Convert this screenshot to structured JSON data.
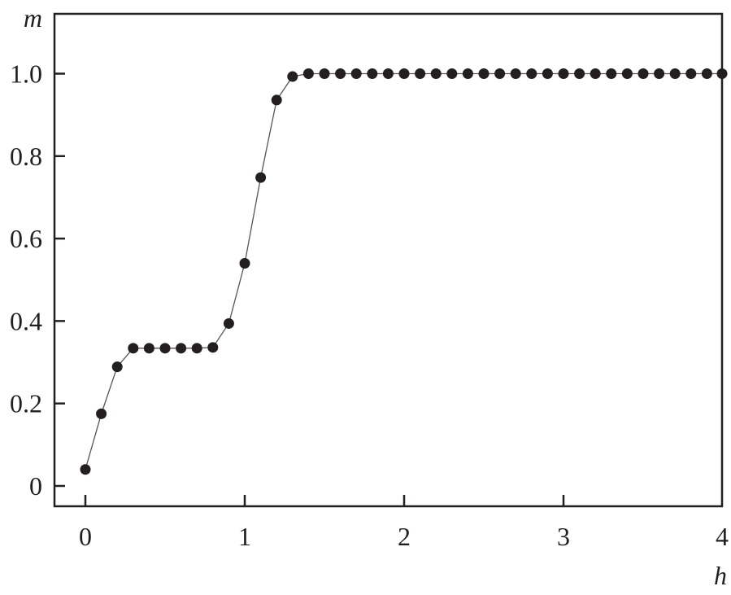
{
  "chart_data": {
    "type": "line",
    "title": "",
    "xlabel": "h",
    "ylabel": "m",
    "xlim": [
      -0.19,
      4.0
    ],
    "ylim": [
      -0.05,
      1.15
    ],
    "grid": false,
    "x_ticks": [
      0,
      1,
      2,
      3,
      4
    ],
    "x_tick_labels": [
      "0",
      "1",
      "2",
      "3",
      "4"
    ],
    "y_ticks": [
      0,
      0.2,
      0.4,
      0.6,
      0.8,
      1.0
    ],
    "y_tick_labels": [
      "0",
      "0.2",
      "0.4",
      "0.6",
      "0.8",
      "1.0"
    ],
    "marker": "filled-circle",
    "colors": {
      "marker": "#231f20",
      "line": "#555555",
      "axis": "#231f20"
    },
    "series": [
      {
        "x": [
          0,
          0.1,
          0.2,
          0.3,
          0.4,
          0.5,
          0.6,
          0.7,
          0.8,
          0.9,
          1.0,
          1.1,
          1.2,
          1.3,
          1.4,
          1.5,
          1.6,
          1.7,
          1.8,
          1.9,
          2.0,
          2.1,
          2.2,
          2.3,
          2.4,
          2.5,
          2.6,
          2.7,
          2.8,
          2.9,
          3.0,
          3.1,
          3.2,
          3.3,
          3.4,
          3.5,
          3.6,
          3.7,
          3.8,
          3.9,
          4.0
        ],
        "y": [
          0.04,
          0.175,
          0.289,
          0.334,
          0.334,
          0.334,
          0.334,
          0.334,
          0.336,
          0.394,
          0.54,
          0.748,
          0.936,
          0.993,
          1.0,
          1.0,
          1.0,
          1.0,
          1.0,
          1.0,
          1.0,
          1.0,
          1.0,
          1.0,
          1.0,
          1.0,
          1.0,
          1.0,
          1.0,
          1.0,
          1.0,
          1.0,
          1.0,
          1.0,
          1.0,
          1.0,
          1.0,
          1.0,
          1.0,
          1.0,
          1.0
        ]
      }
    ]
  }
}
